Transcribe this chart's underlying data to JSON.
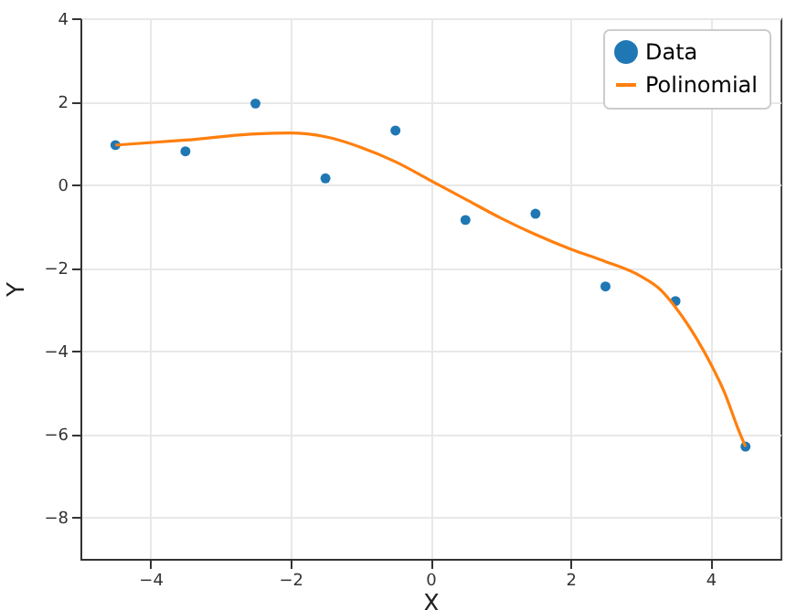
{
  "chart_data": {
    "type": "scatter",
    "xlabel": "X",
    "ylabel": "Y",
    "xlim": [
      -5,
      5
    ],
    "ylim": [
      -9,
      4
    ],
    "xticks": [
      -4,
      -2,
      0,
      2,
      4
    ],
    "yticks": [
      -8,
      -6,
      -4,
      -2,
      0,
      2,
      4
    ],
    "grid": true,
    "legend": "top right",
    "series": [
      {
        "name": "Data",
        "marker": "circle",
        "color": "#1f77b4",
        "x": [
          -4.5,
          -3.5,
          -2.5,
          -1.5,
          -0.5,
          0.5,
          1.5,
          2.5,
          3.5,
          4.5
        ],
        "values": [
          0.95,
          0.8,
          1.95,
          0.15,
          1.3,
          -0.85,
          -0.7,
          -2.45,
          -2.8,
          -6.3
        ]
      },
      {
        "name": "Polinomial",
        "type": "line",
        "color": "#ff7f0e",
        "x": [
          -4.5,
          -3.5,
          -2.5,
          -2,
          -1.5,
          -1,
          -0.5,
          0,
          0.5,
          1,
          1.5,
          2,
          2.5,
          3,
          3.3,
          3.5,
          3.8,
          4,
          4.2,
          4.4,
          4.5
        ],
        "values": [
          0.95,
          1.07,
          1.22,
          1.24,
          1.15,
          0.9,
          0.55,
          0.1,
          -0.35,
          -0.8,
          -1.2,
          -1.55,
          -1.85,
          -2.2,
          -2.55,
          -2.95,
          -3.7,
          -4.3,
          -5.0,
          -5.9,
          -6.3
        ]
      }
    ]
  }
}
